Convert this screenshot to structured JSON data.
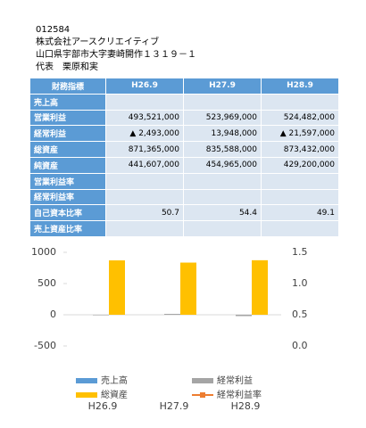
{
  "header": {
    "code": "012584",
    "company": "株式会社アースクリエイティブ",
    "address": "山口県宇部市大字妻崎開作１３１９－１",
    "representative": "代表　栗原和実"
  },
  "table": {
    "header": [
      "財務指標",
      "H26.9",
      "H27.9",
      "H28.9"
    ],
    "rows": [
      [
        "売上高",
        null,
        null,
        null
      ],
      [
        "営業利益",
        "493,521,000",
        "523,969,000",
        "524,482,000"
      ],
      [
        "経常利益",
        "▲ 2,493,000",
        "13,948,000",
        "▲ 21,597,000"
      ],
      [
        "総資産",
        "871,365,000",
        "835,588,000",
        "873,432,000"
      ],
      [
        "純資産",
        "441,607,000",
        "454,965,000",
        "429,200,000"
      ],
      [
        "営業利益率",
        null,
        null,
        null
      ],
      [
        "経常利益率",
        null,
        null,
        null
      ],
      [
        "自己資本比率",
        "50.7",
        "54.4",
        "49.1"
      ],
      [
        "売上資産比率",
        null,
        null,
        null
      ]
    ]
  },
  "chart_data": {
    "type": "bar",
    "categories": [
      "H26.9",
      "H27.9",
      "H28.9"
    ],
    "series": [
      {
        "name": "売上高",
        "color": "#5b9bd5",
        "values": [
          null,
          null,
          null
        ]
      },
      {
        "name": "経常利益",
        "color": "#a5a5a5",
        "values": [
          -2.493,
          13.948,
          -21.597
        ]
      },
      {
        "name": "総資産",
        "color": "#ffc000",
        "values": [
          871.365,
          835.588,
          873.432
        ]
      },
      {
        "name": "経常利益率",
        "color": "#ed7d31",
        "axis": "y2",
        "values": [
          null,
          null,
          null
        ]
      }
    ],
    "ylim": [
      -500,
      1000
    ],
    "yticks": [
      1000,
      500,
      0,
      -500
    ],
    "y2lim": [
      0,
      1.5
    ],
    "y2ticks": [
      1.5,
      {
        "value": 1,
        "label": "1.0"
      },
      0.5,
      {
        "value": 0,
        "label": "0.0"
      }
    ]
  }
}
